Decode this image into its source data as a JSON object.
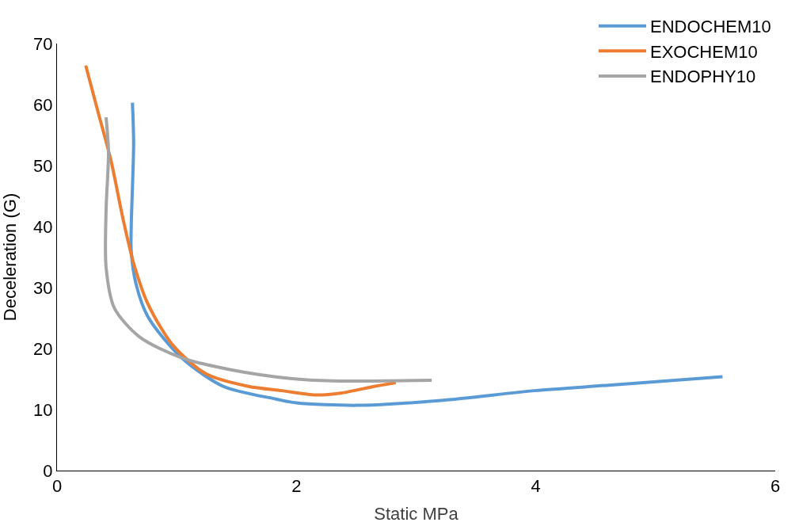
{
  "chart_data": {
    "type": "line",
    "xlabel": "Static MPa",
    "ylabel": "Deceleration (G)",
    "xlim": [
      0,
      6
    ],
    "xticks": [
      0,
      2,
      4,
      6
    ],
    "ylim": [
      0,
      70
    ],
    "yticks": [
      0,
      10,
      20,
      30,
      40,
      50,
      60,
      70
    ],
    "legend": "top right",
    "marker": "none",
    "line_style": "solid",
    "series": [
      {
        "name": "ENDOCHEM10",
        "color": "#5b9bd5",
        "x": [
          0.63,
          0.64,
          0.62,
          0.62,
          0.66,
          0.76,
          1.04,
          1.39,
          1.81,
          2.0,
          2.51,
          3.21,
          3.99,
          4.61,
          5.56
        ],
        "values": [
          60.3,
          53.6,
          40,
          36,
          30.6,
          25.2,
          18.5,
          13.8,
          11.8,
          11.1,
          10.7,
          11.5,
          13.1,
          14,
          15.4
        ]
      },
      {
        "name": "EXOCHEM10",
        "color": "#ed7d31",
        "x": [
          0.24,
          0.34,
          0.45,
          0.55,
          0.64,
          0.76,
          0.97,
          1.25,
          1.6,
          1.88,
          2.16,
          2.37,
          2.65,
          2.83
        ],
        "values": [
          66.4,
          59,
          50.9,
          41.4,
          34,
          27.3,
          20.5,
          15.8,
          13.8,
          13.1,
          12.4,
          12.7,
          13.8,
          14.4
        ]
      },
      {
        "name": "ENDOPHY10",
        "color": "#a5a5a5",
        "x": [
          0.41,
          0.43,
          0.41,
          0.41,
          0.48,
          0.69,
          1.04,
          1.46,
          1.95,
          2.3,
          3.13
        ],
        "values": [
          57.9,
          52.2,
          42.8,
          33.3,
          26.6,
          21.9,
          18.5,
          16.5,
          15.1,
          14.7,
          14.8
        ]
      }
    ]
  }
}
